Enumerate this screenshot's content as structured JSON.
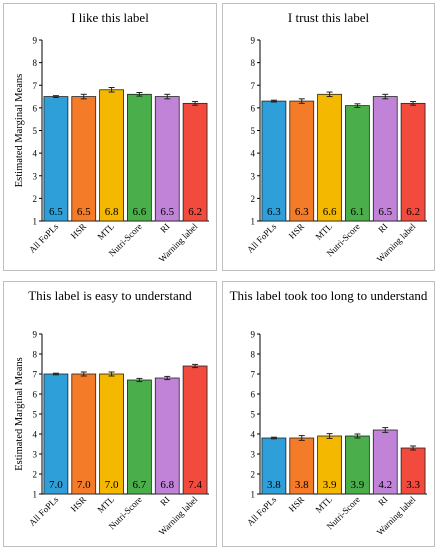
{
  "colors": [
    "#2e9fd9",
    "#f47b28",
    "#f5b800",
    "#4aae4a",
    "#c183d8",
    "#f24a3c"
  ],
  "chart_data": [
    {
      "type": "bar",
      "title": "I like this label",
      "ylabel": "Estimated Marginal Means",
      "ylim": [
        1,
        9
      ],
      "yticks": [
        "1",
        "2",
        "3",
        "4",
        "5",
        "6",
        "7",
        "8",
        "9"
      ],
      "categories": [
        "All FoPLs",
        "HSR",
        "MTL",
        "Nutri-Score",
        "RI",
        "Warning label"
      ],
      "values": [
        6.5,
        6.5,
        6.8,
        6.6,
        6.5,
        6.2
      ],
      "value_labels": [
        "6.5",
        "6.5",
        "6.8",
        "6.6",
        "6.5",
        "6.2"
      ],
      "errors": [
        0.04,
        0.1,
        0.1,
        0.08,
        0.1,
        0.08
      ]
    },
    {
      "type": "bar",
      "title": "I trust this label",
      "ylabel": "",
      "ylim": [
        1,
        9
      ],
      "yticks": [
        "1",
        "2",
        "3",
        "4",
        "5",
        "6",
        "7",
        "8",
        "9"
      ],
      "categories": [
        "All FoPLs",
        "HSR",
        "MTL",
        "Nutri-Score",
        "RI",
        "Warning label"
      ],
      "values": [
        6.3,
        6.3,
        6.6,
        6.1,
        6.5,
        6.2
      ],
      "value_labels": [
        "6.3",
        "6.3",
        "6.6",
        "6.1",
        "6.5",
        "6.2"
      ],
      "errors": [
        0.04,
        0.1,
        0.1,
        0.08,
        0.1,
        0.08
      ]
    },
    {
      "type": "bar",
      "title": "This label is easy to understand",
      "ylabel": "Estimated Marginal Means",
      "ylim": [
        1,
        9
      ],
      "yticks": [
        "1",
        "2",
        "3",
        "4",
        "5",
        "6",
        "7",
        "8",
        "9"
      ],
      "categories": [
        "All FoPLs",
        "HSR",
        "MTL",
        "Nutri-Score",
        "RI",
        "Warning label"
      ],
      "values": [
        7.0,
        7.0,
        7.0,
        6.7,
        6.8,
        7.4
      ],
      "value_labels": [
        "7.0",
        "7.0",
        "7.0",
        "6.7",
        "6.8",
        "7.4"
      ],
      "errors": [
        0.04,
        0.1,
        0.1,
        0.08,
        0.08,
        0.08
      ]
    },
    {
      "type": "bar",
      "title": "This label took too long to understand",
      "ylabel": "",
      "ylim": [
        1,
        9
      ],
      "yticks": [
        "1",
        "2",
        "3",
        "4",
        "5",
        "6",
        "7",
        "8",
        "9"
      ],
      "categories": [
        "All FoPLs",
        "HSR",
        "MTL",
        "Nutri-Score",
        "RI",
        "Warning label"
      ],
      "values": [
        3.8,
        3.8,
        3.9,
        3.9,
        4.2,
        3.3
      ],
      "value_labels": [
        "3.8",
        "3.8",
        "3.9",
        "3.9",
        "4.2",
        "3.3"
      ],
      "errors": [
        0.04,
        0.12,
        0.12,
        0.1,
        0.12,
        0.1
      ]
    }
  ]
}
